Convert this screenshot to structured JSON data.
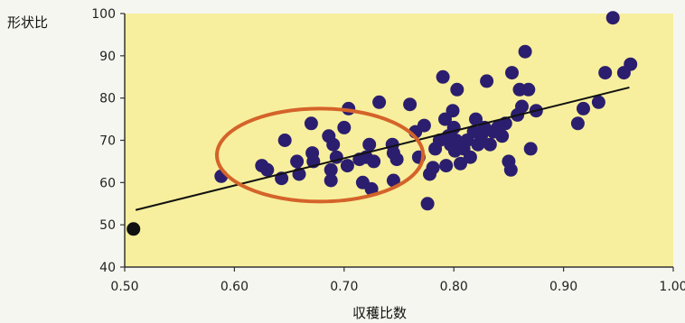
{
  "chart_data": {
    "type": "scatter",
    "ylabel": "形状比",
    "xlabel": "収穫比数",
    "xlim": [
      0.5,
      1.0
    ],
    "ylim": [
      40,
      100
    ],
    "x_ticks": [
      "0.50",
      "0.60",
      "0.70",
      "0.80",
      "0.90",
      "1.00"
    ],
    "y_ticks": [
      "40",
      "50",
      "60",
      "70",
      "80",
      "90",
      "100"
    ],
    "grid": false,
    "colors": {
      "plot_background": "#f7ef9d",
      "points": "#2b1e6e",
      "outlier_point": "#111111",
      "trend_line": "#111111",
      "highlight_ellipse": "#d4632a"
    },
    "points": [
      [
        0.588,
        61.5
      ],
      [
        0.625,
        64
      ],
      [
        0.63,
        63
      ],
      [
        0.643,
        61
      ],
      [
        0.646,
        70
      ],
      [
        0.657,
        65
      ],
      [
        0.659,
        62
      ],
      [
        0.67,
        74
      ],
      [
        0.671,
        67
      ],
      [
        0.672,
        65
      ],
      [
        0.686,
        71
      ],
      [
        0.688,
        63
      ],
      [
        0.69,
        69
      ],
      [
        0.688,
        60.5
      ],
      [
        0.693,
        66
      ],
      [
        0.7,
        73
      ],
      [
        0.703,
        64
      ],
      [
        0.704,
        77.5
      ],
      [
        0.714,
        65.5
      ],
      [
        0.717,
        60
      ],
      [
        0.72,
        66
      ],
      [
        0.723,
        69
      ],
      [
        0.725,
        58.5
      ],
      [
        0.727,
        65
      ],
      [
        0.732,
        79
      ],
      [
        0.745,
        67
      ],
      [
        0.745,
        60.5
      ],
      [
        0.748,
        65.5
      ],
      [
        0.744,
        69
      ],
      [
        0.76,
        78.5
      ],
      [
        0.765,
        72
      ],
      [
        0.768,
        66
      ],
      [
        0.773,
        73.5
      ],
      [
        0.776,
        55
      ],
      [
        0.778,
        62
      ],
      [
        0.781,
        63.5
      ],
      [
        0.783,
        68
      ],
      [
        0.787,
        70
      ],
      [
        0.79,
        85
      ],
      [
        0.792,
        75
      ],
      [
        0.793,
        64
      ],
      [
        0.795,
        71
      ],
      [
        0.797,
        69
      ],
      [
        0.799,
        77
      ],
      [
        0.8,
        73
      ],
      [
        0.801,
        67.5
      ],
      [
        0.802,
        70
      ],
      [
        0.803,
        82
      ],
      [
        0.806,
        64.5
      ],
      [
        0.809,
        68
      ],
      [
        0.812,
        70
      ],
      [
        0.815,
        66
      ],
      [
        0.818,
        72
      ],
      [
        0.82,
        75
      ],
      [
        0.822,
        69
      ],
      [
        0.825,
        71
      ],
      [
        0.828,
        73
      ],
      [
        0.83,
        84
      ],
      [
        0.833,
        69
      ],
      [
        0.836,
        72
      ],
      [
        0.84,
        73
      ],
      [
        0.844,
        71
      ],
      [
        0.847,
        74
      ],
      [
        0.85,
        65
      ],
      [
        0.852,
        63
      ],
      [
        0.853,
        86
      ],
      [
        0.858,
        76
      ],
      [
        0.86,
        82
      ],
      [
        0.862,
        78
      ],
      [
        0.865,
        91
      ],
      [
        0.868,
        82
      ],
      [
        0.87,
        68
      ],
      [
        0.875,
        77
      ],
      [
        0.913,
        74
      ],
      [
        0.918,
        77.5
      ],
      [
        0.932,
        79
      ],
      [
        0.938,
        86
      ],
      [
        0.945,
        99
      ],
      [
        0.955,
        86
      ],
      [
        0.961,
        88
      ]
    ],
    "outlier_points": [
      [
        0.508,
        49
      ]
    ],
    "trend_line": {
      "x": [
        0.51,
        0.96
      ],
      "y": [
        53.5,
        82.5
      ]
    },
    "highlight_ellipse": {
      "cx": 0.678,
      "cy": 66.5,
      "rx": 0.094,
      "ry": 11
    }
  }
}
